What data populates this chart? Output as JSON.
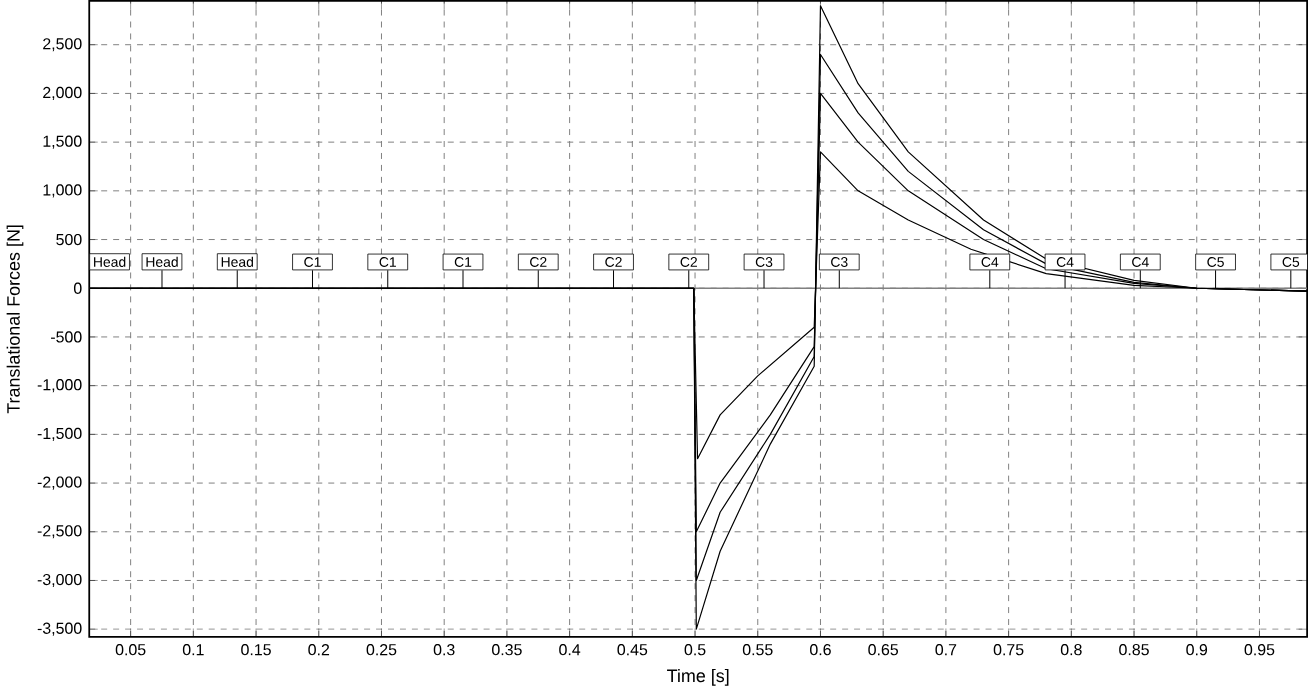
{
  "chart_data": {
    "type": "line",
    "xlabel": "Time [s]",
    "ylabel": "Translational Forces [N]",
    "xlim": [
      0.017,
      0.988
    ],
    "ylim": [
      -3580,
      2950
    ],
    "xticks": [
      0.05,
      0.1,
      0.15,
      0.2,
      0.25,
      0.3,
      0.35,
      0.4,
      0.45,
      0.5,
      0.55,
      0.6,
      0.65,
      0.7,
      0.75,
      0.8,
      0.85,
      0.9,
      0.95
    ],
    "yticks": [
      {
        "value": -3500,
        "label": "-3,500"
      },
      {
        "value": -3000,
        "label": "-3,000"
      },
      {
        "value": -2500,
        "label": "-2,500"
      },
      {
        "value": -2000,
        "label": "-2,000"
      },
      {
        "value": -1500,
        "label": "-1,500"
      },
      {
        "value": -1000,
        "label": "-1,000"
      },
      {
        "value": -500,
        "label": "-500"
      },
      {
        "value": 0,
        "label": "0"
      },
      {
        "value": 500,
        "label": "500"
      },
      {
        "value": 1000,
        "label": "1,000"
      },
      {
        "value": 1500,
        "label": "1,500"
      },
      {
        "value": 2000,
        "label": "2,000"
      },
      {
        "value": 2500,
        "label": "2,500"
      }
    ],
    "grid": true,
    "line_style": "solid",
    "marker": "none",
    "ref_lines": [
      {
        "axis": "y",
        "value": 0,
        "color": "#808080"
      }
    ],
    "series": [
      {
        "color": "#000000",
        "x": [
          0.017,
          0.499,
          0.502,
          0.52,
          0.55,
          0.595,
          0.6,
          0.63,
          0.67,
          0.72,
          0.78,
          0.85,
          0.9,
          0.988
        ],
        "values": [
          0,
          0,
          -1750,
          -1300,
          -900,
          -400,
          1400,
          1000,
          700,
          400,
          150,
          30,
          0,
          -30
        ]
      },
      {
        "color": "#000000",
        "x": [
          0.017,
          0.499,
          0.501,
          0.52,
          0.56,
          0.595,
          0.6,
          0.63,
          0.67,
          0.73,
          0.78,
          0.85,
          0.9,
          0.988
        ],
        "values": [
          0,
          0,
          -2500,
          -2000,
          -1300,
          -600,
          2000,
          1500,
          1000,
          500,
          200,
          50,
          0,
          -30
        ]
      },
      {
        "color": "#000000",
        "x": [
          0.017,
          0.499,
          0.501,
          0.52,
          0.56,
          0.595,
          0.6,
          0.63,
          0.67,
          0.73,
          0.78,
          0.85,
          0.9,
          0.988
        ],
        "values": [
          0,
          0,
          -3000,
          -2300,
          -1500,
          -700,
          2400,
          1800,
          1200,
          600,
          250,
          60,
          0,
          -30
        ]
      },
      {
        "color": "#000000",
        "x": [
          0.017,
          0.499,
          0.501,
          0.52,
          0.56,
          0.595,
          0.6,
          0.63,
          0.67,
          0.73,
          0.78,
          0.85,
          0.9,
          0.988
        ],
        "values": [
          0,
          0,
          -3500,
          -2700,
          -1600,
          -800,
          2900,
          2100,
          1400,
          700,
          300,
          80,
          0,
          -30
        ]
      }
    ],
    "annotations": [
      {
        "text": "Head",
        "x": 0.017,
        "y": 0
      },
      {
        "text": "Head",
        "x": 0.075,
        "y": 0
      },
      {
        "text": "Head",
        "x": 0.135,
        "y": 0
      },
      {
        "text": "C1",
        "x": 0.195,
        "y": 0
      },
      {
        "text": "C1",
        "x": 0.255,
        "y": 0
      },
      {
        "text": "C1",
        "x": 0.315,
        "y": 0
      },
      {
        "text": "C2",
        "x": 0.375,
        "y": 0
      },
      {
        "text": "C2",
        "x": 0.435,
        "y": 0
      },
      {
        "text": "C2",
        "x": 0.495,
        "y": 0
      },
      {
        "text": "C3",
        "x": 0.555,
        "y": 0
      },
      {
        "text": "C3",
        "x": 0.615,
        "y": 0
      },
      {
        "text": "C4",
        "x": 0.735,
        "y": 0
      },
      {
        "text": "C4",
        "x": 0.795,
        "y": 0
      },
      {
        "text": "C4",
        "x": 0.855,
        "y": 0
      },
      {
        "text": "C5",
        "x": 0.915,
        "y": 0
      },
      {
        "text": "C5",
        "x": 0.975,
        "y": 0
      }
    ]
  }
}
